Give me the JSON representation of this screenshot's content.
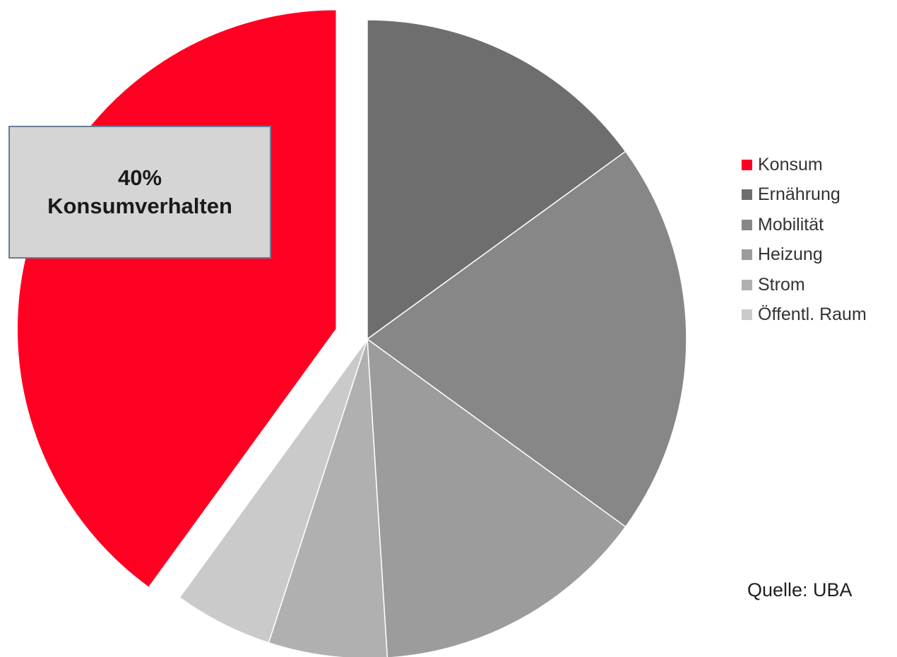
{
  "chart_data": {
    "type": "pie",
    "categories": [
      "Konsum",
      "Ernährung",
      "Mobilität",
      "Heizung",
      "Strom",
      "Öffentl. Raum"
    ],
    "values": [
      40,
      15,
      20,
      14,
      6,
      5
    ],
    "colors": [
      "#ff0022",
      "#6e6e6e",
      "#878787",
      "#9c9c9c",
      "#b0b0b0",
      "#cacaca"
    ],
    "exploded": [
      "Konsum"
    ],
    "legend": "right"
  },
  "callout": {
    "value": "40%",
    "label": "Konsumverhalten"
  },
  "source": "Quelle: UBA"
}
